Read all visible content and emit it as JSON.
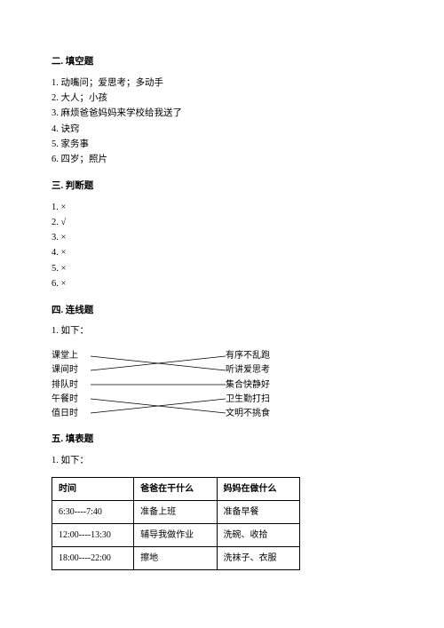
{
  "sections": {
    "s2": {
      "title": "二. 填空题",
      "items": [
        "1. 动嘴问；爱思考；多动手",
        "2. 大人；小孩",
        "3. 麻烦爸爸妈妈来学校给我送了",
        "4. 诀窍",
        "5. 家务事",
        "6. 四岁；照片"
      ]
    },
    "s3": {
      "title": "三. 判断题",
      "items": [
        "1. ×",
        "2. √",
        "3. ×",
        "4. ×",
        "5. ×",
        "6. ×"
      ]
    },
    "s4": {
      "title": "四. 连线题",
      "intro": "1. 如下：",
      "left": [
        "课堂上",
        "课间时",
        "排队时",
        "午餐时",
        "值日时"
      ],
      "right": [
        "有序不乱跑",
        "听讲爱思考",
        "集合快静好",
        "卫生勤打扫",
        "文明不挑食"
      ],
      "connections": [
        [
          0,
          1
        ],
        [
          1,
          0
        ],
        [
          2,
          2
        ],
        [
          3,
          4
        ],
        [
          4,
          3
        ]
      ],
      "line_color": "#000000",
      "line_width": 0.7
    },
    "s5": {
      "title": "五. 填表题",
      "intro": "1. 如下：",
      "columns": [
        "时间",
        "爸爸在干什么",
        "妈妈在做什么"
      ],
      "rows": [
        [
          "6:30----7:40",
          "准备上班",
          "准备早餐"
        ],
        [
          "12:00----13:30",
          "辅导我做作业",
          "洗碗、收拾"
        ],
        [
          "18:00----22:00",
          "擦地",
          "洗袜子、衣服"
        ]
      ]
    }
  }
}
